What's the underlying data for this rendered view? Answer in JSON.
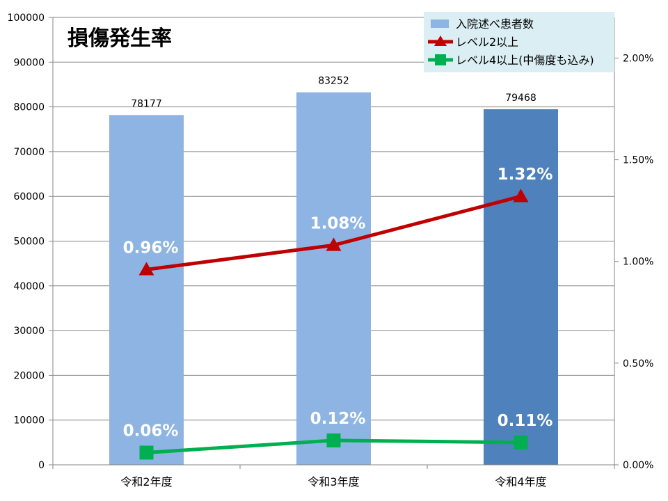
{
  "chart_data": {
    "type": "bar",
    "title": "損傷発生率",
    "categories": [
      "令和2年度",
      "令和3年度",
      "令和4年度"
    ],
    "series": [
      {
        "name": "入院述べ患者数",
        "kind": "bar",
        "axis": "left",
        "values": [
          78177,
          83252,
          79468
        ],
        "labels": [
          "78177",
          "83252",
          "79468"
        ],
        "colors": [
          "#8EB4E3",
          "#8EB4E3",
          "#4F81BD"
        ]
      },
      {
        "name": "レベル2以上",
        "kind": "line",
        "axis": "right",
        "marker": "triangle",
        "color": "#C00000",
        "values": [
          0.96,
          1.08,
          1.32
        ],
        "labels": [
          "0.96%",
          "1.08%",
          "1.32%"
        ]
      },
      {
        "name": "レベル4以上(中傷度も込み)",
        "kind": "line",
        "axis": "right",
        "marker": "square",
        "color": "#00B050",
        "values": [
          0.06,
          0.12,
          0.11
        ],
        "labels": [
          "0.06%",
          "0.12%",
          "0.11%"
        ]
      }
    ],
    "left_axis": {
      "ylim": [
        0,
        100000
      ],
      "ticks": [
        0,
        10000,
        20000,
        30000,
        40000,
        50000,
        60000,
        70000,
        80000,
        90000,
        100000
      ],
      "tick_labels": [
        "0",
        "10000",
        "20000",
        "30000",
        "40000",
        "50000",
        "60000",
        "70000",
        "80000",
        "90000",
        "100000"
      ]
    },
    "right_axis": {
      "ylim": [
        0,
        2.2
      ],
      "ticks": [
        0,
        0.5,
        1.0,
        1.5,
        2.0
      ],
      "tick_labels": [
        "0.00%",
        "0.50%",
        "1.00%",
        "1.50%",
        "2.00%"
      ]
    },
    "grid": true,
    "legend_position": "top-right",
    "legend_background": "#DAEEF3"
  }
}
